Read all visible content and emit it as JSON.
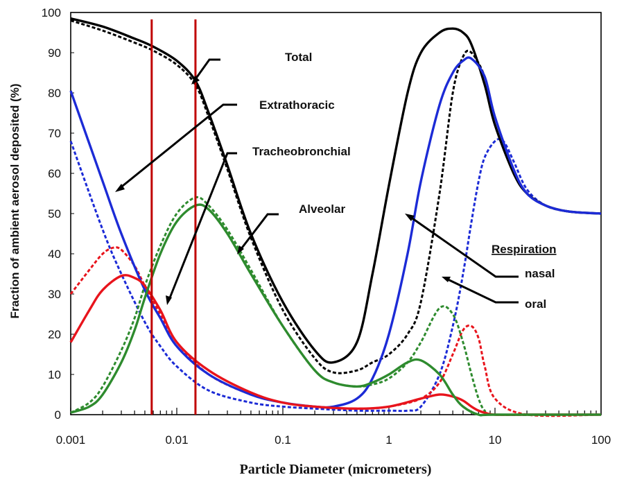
{
  "chart_data": {
    "type": "line",
    "title": "",
    "xlabel": "Particle Diameter (micrometers)",
    "ylabel": "Fraction of ambient aerosol deposited  (%)",
    "xscale": "log",
    "xlim": [
      0.001,
      100
    ],
    "ylim": [
      0,
      100
    ],
    "x_ticks": [
      "0.001",
      "0.01",
      "0.1",
      "1",
      "10",
      "100"
    ],
    "y_ticks": [
      "0",
      "10",
      "20",
      "30",
      "40",
      "50",
      "60",
      "70",
      "80",
      "90",
      "100"
    ],
    "legend": {
      "heading": "Respiration",
      "entries": [
        {
          "label": "nasal",
          "style": "solid"
        },
        {
          "label": "oral",
          "style": "dashed"
        }
      ]
    },
    "annotations": [
      "Total",
      "Extrathoracic",
      "Tracheobronchial",
      "Alveolar"
    ],
    "vertical_markers": {
      "x": [
        0.0058,
        0.015
      ],
      "color": "#c00000"
    },
    "colors": {
      "total": "#000000",
      "extrathoracic": "#1c2bd6",
      "tracheobronchial": "#e8141c",
      "alveolar": "#2e8b2e"
    },
    "series": [
      {
        "region": "total",
        "breathing": "nasal",
        "style": "solid",
        "x": [
          0.001,
          0.002,
          0.004,
          0.006,
          0.01,
          0.015,
          0.02,
          0.03,
          0.05,
          0.1,
          0.2,
          0.3,
          0.5,
          0.7,
          1,
          1.5,
          2,
          3,
          4,
          5,
          6,
          8,
          10,
          15,
          20,
          30,
          50,
          100
        ],
        "y": [
          98.5,
          96.5,
          93.5,
          91.5,
          88,
          83,
          75,
          62,
          45,
          28,
          16,
          13,
          18,
          35,
          57,
          80,
          90,
          95,
          96,
          95,
          92,
          82,
          72,
          60,
          55,
          52,
          50.5,
          50
        ]
      },
      {
        "region": "total",
        "breathing": "oral",
        "style": "dashed",
        "x": [
          0.001,
          0.002,
          0.004,
          0.006,
          0.01,
          0.015,
          0.02,
          0.03,
          0.05,
          0.1,
          0.2,
          0.3,
          0.5,
          0.7,
          1,
          1.5,
          2,
          3,
          4,
          5,
          6,
          8,
          10,
          15,
          20,
          30,
          50,
          100
        ],
        "y": [
          98,
          95.5,
          92.5,
          90.5,
          87,
          82,
          74,
          61,
          44,
          26,
          14,
          10.5,
          11,
          13,
          15,
          20,
          28,
          55,
          80,
          89,
          90,
          84,
          74,
          61,
          55,
          52,
          50.5,
          50
        ]
      },
      {
        "region": "extrathoracic",
        "breathing": "nasal",
        "style": "solid",
        "x": [
          0.001,
          0.002,
          0.003,
          0.005,
          0.007,
          0.01,
          0.02,
          0.05,
          0.1,
          0.2,
          0.3,
          0.5,
          0.7,
          1,
          1.5,
          2,
          3,
          4,
          5,
          6,
          8,
          10,
          15,
          20,
          30,
          50,
          100
        ],
        "y": [
          80.5,
          58,
          45,
          31,
          24,
          17,
          10,
          5,
          3,
          2,
          2,
          4,
          9,
          20,
          40,
          58,
          77,
          85,
          88,
          88.5,
          84,
          74,
          61,
          55,
          52,
          50.5,
          50
        ]
      },
      {
        "region": "extrathoracic",
        "breathing": "oral",
        "style": "dashed",
        "x": [
          0.001,
          0.002,
          0.003,
          0.005,
          0.007,
          0.01,
          0.02,
          0.05,
          0.1,
          0.2,
          0.5,
          1,
          1.5,
          2,
          3,
          4,
          5,
          6,
          7,
          8,
          10,
          12,
          15,
          20,
          30,
          50,
          100
        ],
        "y": [
          68,
          46,
          35,
          23,
          17,
          12,
          6,
          3,
          2,
          1.5,
          1,
          1,
          1,
          2,
          10,
          22,
          35,
          48,
          58,
          64,
          68,
          68,
          63,
          56,
          52,
          50.5,
          50
        ]
      },
      {
        "region": "tracheobronchial",
        "breathing": "nasal",
        "style": "solid",
        "x": [
          0.001,
          0.0015,
          0.002,
          0.003,
          0.004,
          0.005,
          0.007,
          0.01,
          0.02,
          0.05,
          0.1,
          0.2,
          0.5,
          1,
          2,
          3,
          4,
          5,
          6,
          7,
          8,
          10,
          20,
          100
        ],
        "y": [
          18,
          26,
          31,
          34.5,
          34,
          32,
          26,
          18,
          11,
          5.5,
          3,
          2,
          1.5,
          2,
          4,
          5,
          4.5,
          3.5,
          2,
          1,
          0.5,
          0,
          0,
          0
        ]
      },
      {
        "region": "tracheobronchial",
        "breathing": "oral",
        "style": "dashed",
        "x": [
          0.001,
          0.0015,
          0.002,
          0.0025,
          0.003,
          0.004,
          0.005,
          0.007,
          0.01,
          0.02,
          0.05,
          0.1,
          0.2,
          0.5,
          1,
          2,
          3,
          4,
          5,
          6,
          7,
          8,
          10,
          20,
          100
        ],
        "y": [
          30,
          36,
          40,
          41.5,
          41,
          37,
          32,
          25,
          18,
          10,
          5,
          3,
          2,
          1.5,
          2,
          4,
          8,
          15,
          21,
          22,
          19,
          12,
          4,
          0,
          0
        ]
      },
      {
        "region": "alveolar",
        "breathing": "nasal",
        "style": "solid",
        "x": [
          0.001,
          0.0015,
          0.002,
          0.003,
          0.004,
          0.005,
          0.007,
          0.01,
          0.015,
          0.02,
          0.03,
          0.05,
          0.1,
          0.2,
          0.3,
          0.5,
          0.7,
          1,
          1.5,
          2,
          3,
          4,
          5,
          7,
          10,
          100
        ],
        "y": [
          0.5,
          2,
          5,
          13,
          21,
          29,
          40,
          48,
          52,
          51,
          45,
          35,
          22,
          11,
          8,
          7,
          8,
          10,
          13,
          13.5,
          10,
          5,
          2,
          0,
          0,
          0
        ]
      },
      {
        "region": "alveolar",
        "breathing": "oral",
        "style": "dashed",
        "x": [
          0.001,
          0.0015,
          0.002,
          0.003,
          0.004,
          0.005,
          0.007,
          0.01,
          0.015,
          0.02,
          0.03,
          0.05,
          0.1,
          0.2,
          0.3,
          0.5,
          0.7,
          1,
          1.5,
          2,
          3,
          4,
          5,
          6,
          7,
          8,
          10,
          100
        ],
        "y": [
          0.5,
          3,
          7,
          16,
          24,
          32,
          42,
          50,
          54,
          52,
          46,
          36,
          22,
          11,
          8,
          7,
          7.5,
          9,
          13,
          18,
          26.5,
          25,
          18,
          10,
          4,
          1,
          0,
          0
        ]
      }
    ]
  }
}
